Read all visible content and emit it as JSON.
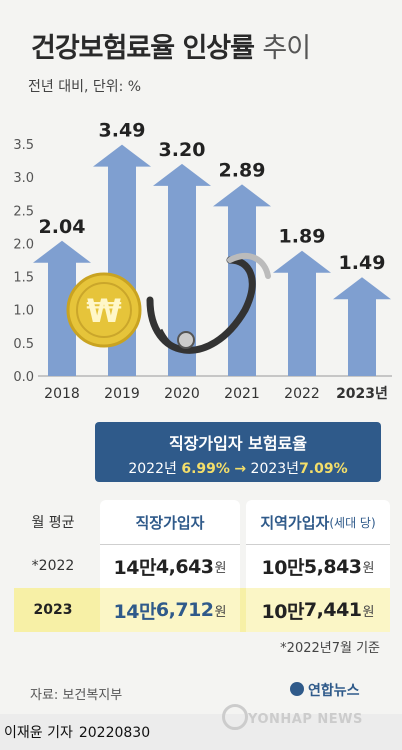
{
  "header": {
    "title_bold": "건강보험료율 인상률",
    "title_light": "추이",
    "subtitle": "전년 대비, 단위: %"
  },
  "chart_data": {
    "type": "bar",
    "categories": [
      "2018",
      "2019",
      "2020",
      "2021",
      "2022",
      "2023년"
    ],
    "values": [
      2.04,
      3.49,
      3.2,
      2.89,
      1.89,
      1.49
    ],
    "value_labels": [
      "2.04",
      "3.49",
      "3.20",
      "2.89",
      "1.89",
      "1.49"
    ],
    "y_ticks": [
      "0.0",
      "0.5",
      "1.0",
      "1.5",
      "2.0",
      "2.5",
      "3.0",
      "3.5"
    ],
    "ylim": [
      0,
      3.5
    ],
    "grid": false,
    "bar_color": "#7f9fd0",
    "bar_style": "upward-arrow"
  },
  "callout": {
    "title": "직장가입자 보험료율",
    "from_year": "2022년",
    "from_value": "6.99%",
    "arrow": "→",
    "to_year": "2023년",
    "to_value": "7.09%"
  },
  "table": {
    "header_label": "월 평균",
    "col_a": "직장가입자",
    "col_b": "지역가입자",
    "col_b_note": "(세대 당)",
    "rows": [
      {
        "year": "*2022",
        "a_man": "14만",
        "a_rest": "4,643",
        "b_man": "10만",
        "b_rest": "5,843",
        "unit": "원"
      },
      {
        "year": "2023",
        "a_man": "14만",
        "a_rest": "6,712",
        "b_man": "10만",
        "b_rest": "7,441",
        "unit": "원"
      }
    ]
  },
  "note": "*2022년7월 기준",
  "source": "자료: 보건복지부",
  "logo": {
    "kr": "연합뉴스",
    "en": "YONHAP NEWS"
  },
  "footer": {
    "reporter": "이재윤 기자",
    "date": "20220830"
  },
  "colors": {
    "accent": "#2f5a8a",
    "highlight_value": "#f3de6a",
    "row_highlight": "#f7f0a6"
  }
}
